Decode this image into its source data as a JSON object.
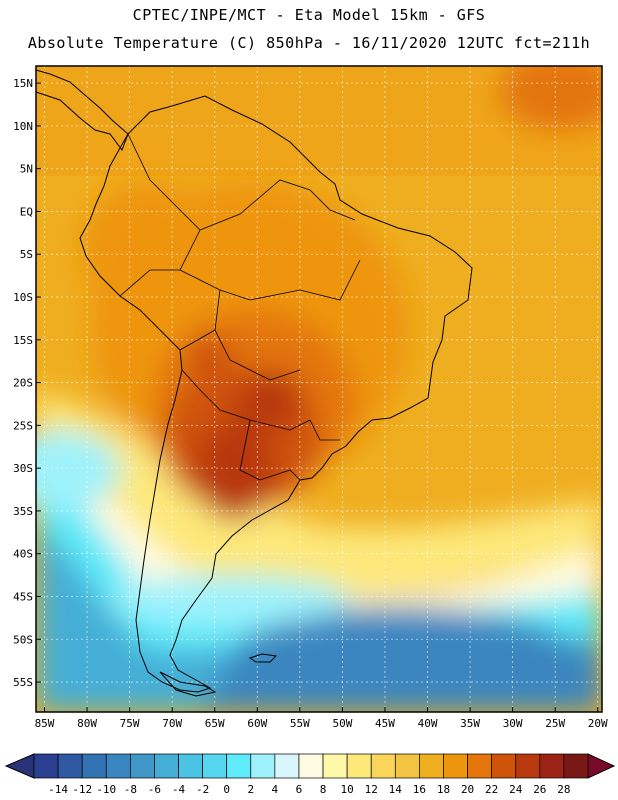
{
  "header": {
    "title_line1": "CPTEC/INPE/MCT -  Eta Model 15km - GFS",
    "title_line2": "Absolute Temperature (C) 850hPa - 16/11/2020 12UTC fct=211h"
  },
  "map": {
    "lat_labels": [
      "15N",
      "10N",
      "5N",
      "EQ",
      "5S",
      "10S",
      "15S",
      "20S",
      "25S",
      "30S",
      "35S",
      "40S",
      "45S",
      "50S",
      "55S"
    ],
    "lat_values": [
      15,
      10,
      5,
      0,
      -5,
      -10,
      -15,
      -20,
      -25,
      -30,
      -35,
      -40,
      -45,
      -50,
      -55
    ],
    "lon_labels": [
      "85W",
      "80W",
      "75W",
      "70W",
      "65W",
      "60W",
      "55W",
      "50W",
      "45W",
      "40W",
      "35W",
      "30W",
      "25W",
      "20W"
    ],
    "lon_values": [
      -85,
      -80,
      -75,
      -70,
      -65,
      -60,
      -55,
      -50,
      -45,
      -40,
      -35,
      -30,
      -25,
      -20
    ],
    "lon_range": [
      -86,
      -19.5
    ],
    "lat_range": [
      -58.5,
      17
    ]
  },
  "colorbar": {
    "labels": [
      "-14",
      "-12",
      "-10",
      "-8",
      "-6",
      "-4",
      "-2",
      "0",
      "2",
      "4",
      "6",
      "8",
      "10",
      "12",
      "14",
      "16",
      "18",
      "20",
      "22",
      "24",
      "26",
      "28"
    ],
    "colors": [
      "#2a3f8f",
      "#2f5aa3",
      "#3372b3",
      "#3a86c0",
      "#3f98c8",
      "#44aed6",
      "#4bc3e3",
      "#55d7ef",
      "#60ebfa",
      "#9ff2fb",
      "#d8f6fb",
      "#fffbe3",
      "#fff8a8",
      "#fde87a",
      "#f9d65a",
      "#f2c442",
      "#efae20",
      "#ee950f",
      "#e3750a",
      "#cf5309",
      "#b83810",
      "#9c2216",
      "#7a1818"
    ],
    "low_arrow_color": "#2a3278",
    "high_arrow_color": "#7a0a2a"
  }
}
